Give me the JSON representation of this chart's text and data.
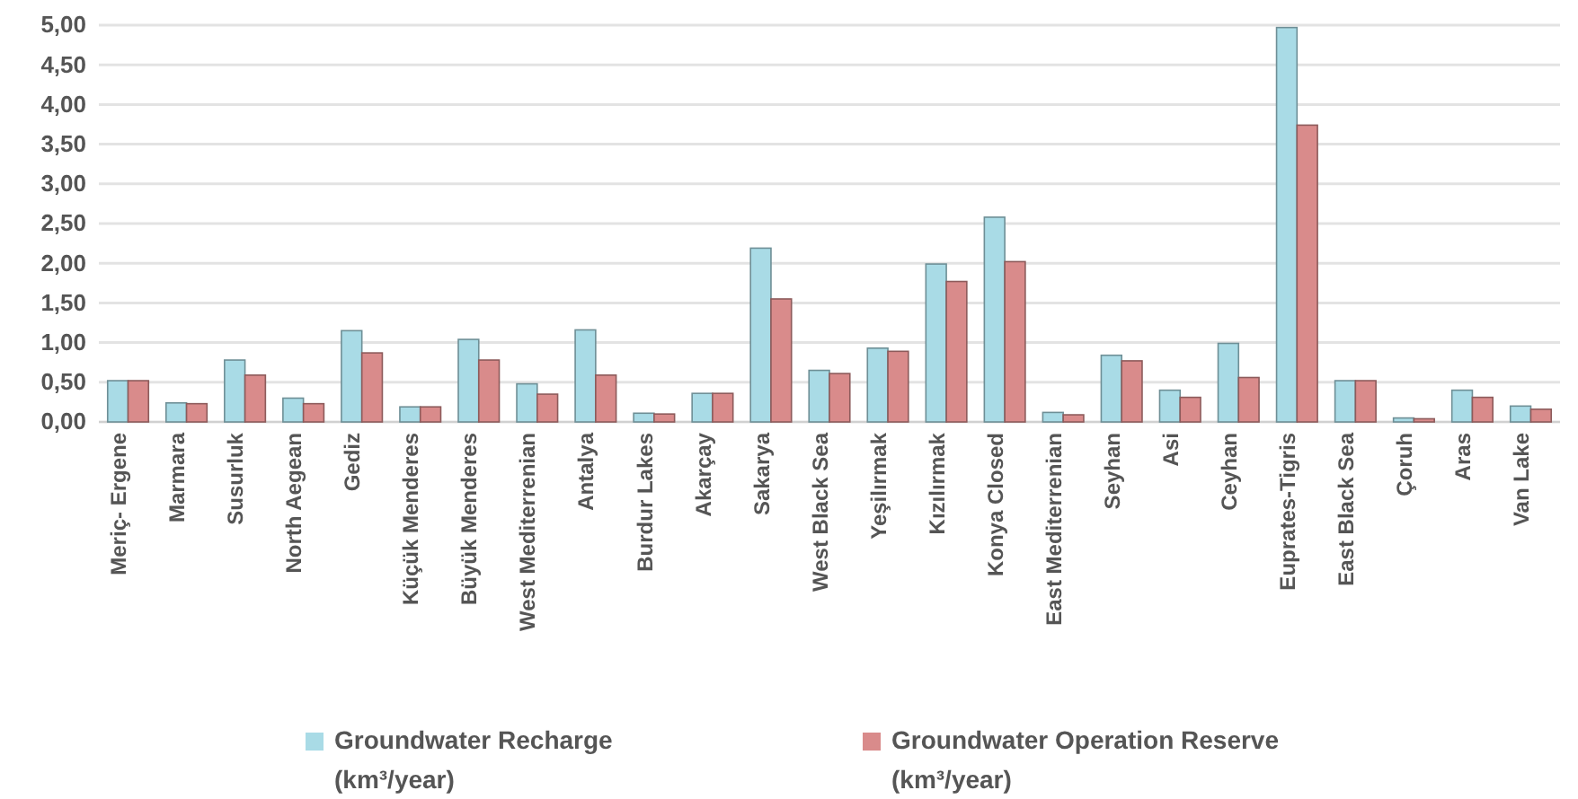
{
  "chart_data": {
    "type": "bar",
    "categories": [
      "Meriç- Ergene",
      "Marmara",
      "Susurluk",
      "North Aegean",
      "Gediz",
      "Küçük Menderes",
      "Büyük Menderes",
      "West Mediterrenian",
      "Antalya",
      "Burdur Lakes",
      "Akarçay",
      "Sakarya",
      "West Black Sea",
      "Yeşilırmak",
      "Kızılırmak",
      "Konya Closed",
      "East Mediterrenian",
      "Seyhan",
      "Asi",
      "Ceyhan",
      "Euprates-Tigris",
      "East Black Sea",
      "Çoruh",
      "Aras",
      "Van Lake"
    ],
    "series": [
      {
        "name": "Groundwater Recharge (km³/year)",
        "color": "#a9dbe6",
        "values": [
          0.52,
          0.24,
          0.78,
          0.3,
          1.15,
          0.19,
          1.04,
          0.48,
          1.16,
          0.11,
          0.36,
          2.19,
          0.65,
          0.93,
          1.99,
          2.58,
          0.12,
          0.84,
          0.4,
          0.99,
          4.97,
          0.52,
          0.05,
          0.4,
          0.2
        ]
      },
      {
        "name": "Groundwater Operation Reserve (km³/year)",
        "color": "#d98b8b",
        "values": [
          0.52,
          0.23,
          0.59,
          0.23,
          0.87,
          0.19,
          0.78,
          0.35,
          0.59,
          0.1,
          0.36,
          1.55,
          0.61,
          0.89,
          1.77,
          2.02,
          0.09,
          0.77,
          0.31,
          0.56,
          3.74,
          0.52,
          0.04,
          0.31,
          0.16
        ]
      }
    ],
    "ylim": [
      0,
      5
    ],
    "yticks": [
      {
        "value": 0,
        "label": "0,00"
      },
      {
        "value": 0.5,
        "label": "0,50"
      },
      {
        "value": 1,
        "label": "1,00"
      },
      {
        "value": 1.5,
        "label": "1,50"
      },
      {
        "value": 2,
        "label": "2,00"
      },
      {
        "value": 2.5,
        "label": "2,50"
      },
      {
        "value": 3,
        "label": "3,00"
      },
      {
        "value": 3.5,
        "label": "3,50"
      },
      {
        "value": 4,
        "label": "4,00"
      },
      {
        "value": 4.5,
        "label": "4,50"
      },
      {
        "value": 5,
        "label": "5,00"
      }
    ],
    "grid": "y",
    "legend": "bottom"
  }
}
